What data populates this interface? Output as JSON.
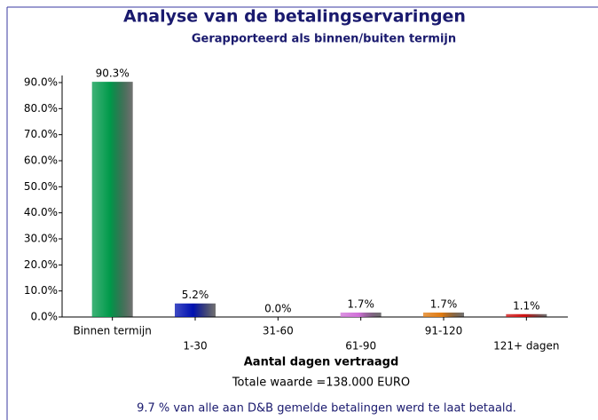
{
  "chart_data": {
    "type": "bar",
    "title": "Analyse van de betalingservaringen",
    "subtitle": "Gerapporteerd als binnen/buiten termijn",
    "x_label": "Aantal dagen vertraagd",
    "total": "Totale waarde =138.000  EURO",
    "footer": "9.7 % van alle aan D&B gemelde betalingen werd te laat betaald.",
    "categories": [
      "Binnen termijn",
      "1-30",
      "31-60",
      "61-90",
      "91-120",
      "121+ dagen"
    ],
    "values": [
      90.3,
      5.2,
      0.0,
      1.7,
      1.7,
      1.1
    ],
    "value_labels": [
      "90.3%",
      "5.2%",
      "0.0%",
      "1.7%",
      "1.7%",
      "1.1%"
    ],
    "colors": [
      "#00994a",
      "#0010b0",
      "#888888",
      "#d070d8",
      "#e07a10",
      "#d01010"
    ],
    "ylim": [
      0,
      90
    ],
    "yticks": [
      {
        "value": 0,
        "label": "0.0%"
      },
      {
        "value": 10,
        "label": "10.0%"
      },
      {
        "value": 20,
        "label": "20.0%"
      },
      {
        "value": 30,
        "label": "30.0%"
      },
      {
        "value": 40,
        "label": "40.0%"
      },
      {
        "value": 50,
        "label": "50.0%"
      },
      {
        "value": 60,
        "label": "60.0%"
      },
      {
        "value": 70,
        "label": "70.0%"
      },
      {
        "value": 80,
        "label": "80.0%"
      },
      {
        "value": 90,
        "label": "90.0%"
      }
    ]
  }
}
